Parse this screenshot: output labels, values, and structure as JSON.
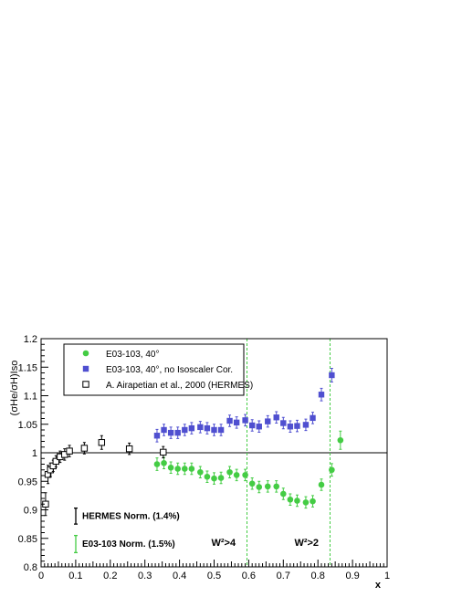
{
  "chart_data": {
    "type": "scatter",
    "xlabel": "x",
    "ylabel": "(σHe/σH)Iso",
    "xlim": [
      0,
      1
    ],
    "ylim": [
      0.8,
      1.2
    ],
    "x_ticks": [
      "0",
      "0.1",
      "0.2",
      "0.3",
      "0.4",
      "0.5",
      "0.6",
      "0.7",
      "0.8",
      "0.9",
      "1"
    ],
    "y_ticks": [
      "0.8",
      "0.85",
      "0.9",
      "0.95",
      "1",
      "1.05",
      "1.1",
      "1.15",
      "1.2"
    ],
    "reference_line": 1.0,
    "legend": {
      "placement": "top-left"
    },
    "colors": {
      "green": "#44cc44",
      "blue": "#4f4fd0",
      "black": "#000000",
      "vline": "#44cc44"
    },
    "series": [
      {
        "name": "E03-103, 40°",
        "marker": "circle",
        "color": "#44cc44",
        "points": [
          {
            "x": 0.335,
            "y": 0.98,
            "err": 0.011
          },
          {
            "x": 0.355,
            "y": 0.982,
            "err": 0.01
          },
          {
            "x": 0.375,
            "y": 0.974,
            "err": 0.01
          },
          {
            "x": 0.395,
            "y": 0.972,
            "err": 0.01
          },
          {
            "x": 0.415,
            "y": 0.972,
            "err": 0.01
          },
          {
            "x": 0.435,
            "y": 0.972,
            "err": 0.01
          },
          {
            "x": 0.46,
            "y": 0.966,
            "err": 0.01
          },
          {
            "x": 0.48,
            "y": 0.958,
            "err": 0.01
          },
          {
            "x": 0.5,
            "y": 0.955,
            "err": 0.01
          },
          {
            "x": 0.52,
            "y": 0.956,
            "err": 0.01
          },
          {
            "x": 0.545,
            "y": 0.966,
            "err": 0.01
          },
          {
            "x": 0.565,
            "y": 0.961,
            "err": 0.01
          },
          {
            "x": 0.59,
            "y": 0.961,
            "err": 0.01
          },
          {
            "x": 0.61,
            "y": 0.946,
            "err": 0.01
          },
          {
            "x": 0.63,
            "y": 0.94,
            "err": 0.01
          },
          {
            "x": 0.655,
            "y": 0.941,
            "err": 0.01
          },
          {
            "x": 0.68,
            "y": 0.941,
            "err": 0.01
          },
          {
            "x": 0.7,
            "y": 0.928,
            "err": 0.01
          },
          {
            "x": 0.72,
            "y": 0.918,
            "err": 0.01
          },
          {
            "x": 0.74,
            "y": 0.916,
            "err": 0.01
          },
          {
            "x": 0.765,
            "y": 0.913,
            "err": 0.01
          },
          {
            "x": 0.785,
            "y": 0.915,
            "err": 0.01
          },
          {
            "x": 0.81,
            "y": 0.944,
            "err": 0.01
          },
          {
            "x": 0.84,
            "y": 0.97,
            "err": 0.011
          },
          {
            "x": 0.865,
            "y": 1.022,
            "err": 0.016
          }
        ]
      },
      {
        "name": "E03-103, 40°, no Isoscaler Cor.",
        "marker": "square",
        "color": "#4f4fd0",
        "points": [
          {
            "x": 0.335,
            "y": 1.03,
            "err": 0.011
          },
          {
            "x": 0.355,
            "y": 1.04,
            "err": 0.01
          },
          {
            "x": 0.375,
            "y": 1.035,
            "err": 0.01
          },
          {
            "x": 0.395,
            "y": 1.035,
            "err": 0.01
          },
          {
            "x": 0.415,
            "y": 1.04,
            "err": 0.01
          },
          {
            "x": 0.435,
            "y": 1.043,
            "err": 0.01
          },
          {
            "x": 0.46,
            "y": 1.045,
            "err": 0.01
          },
          {
            "x": 0.48,
            "y": 1.043,
            "err": 0.01
          },
          {
            "x": 0.5,
            "y": 1.04,
            "err": 0.01
          },
          {
            "x": 0.52,
            "y": 1.04,
            "err": 0.01
          },
          {
            "x": 0.545,
            "y": 1.056,
            "err": 0.01
          },
          {
            "x": 0.565,
            "y": 1.053,
            "err": 0.01
          },
          {
            "x": 0.59,
            "y": 1.057,
            "err": 0.01
          },
          {
            "x": 0.61,
            "y": 1.048,
            "err": 0.01
          },
          {
            "x": 0.63,
            "y": 1.046,
            "err": 0.01
          },
          {
            "x": 0.655,
            "y": 1.055,
            "err": 0.01
          },
          {
            "x": 0.68,
            "y": 1.062,
            "err": 0.01
          },
          {
            "x": 0.7,
            "y": 1.052,
            "err": 0.01
          },
          {
            "x": 0.72,
            "y": 1.046,
            "err": 0.01
          },
          {
            "x": 0.74,
            "y": 1.047,
            "err": 0.01
          },
          {
            "x": 0.765,
            "y": 1.049,
            "err": 0.01
          },
          {
            "x": 0.785,
            "y": 1.061,
            "err": 0.01
          },
          {
            "x": 0.81,
            "y": 1.102,
            "err": 0.011
          },
          {
            "x": 0.84,
            "y": 1.136,
            "err": 0.012
          }
        ]
      },
      {
        "name": "A. Airapetian et al., 2000 (HERMES)",
        "marker": "open-square",
        "color": "#000000",
        "points": [
          {
            "x": 0.013,
            "y": 0.91,
            "err": 0.02
          },
          {
            "x": 0.02,
            "y": 0.962,
            "err": 0.016
          },
          {
            "x": 0.027,
            "y": 0.97,
            "err": 0.012
          },
          {
            "x": 0.035,
            "y": 0.977,
            "err": 0.01
          },
          {
            "x": 0.043,
            "y": 0.985,
            "err": 0.01
          },
          {
            "x": 0.055,
            "y": 0.993,
            "err": 0.01
          },
          {
            "x": 0.068,
            "y": 0.997,
            "err": 0.01
          },
          {
            "x": 0.082,
            "y": 1.003,
            "err": 0.01
          },
          {
            "x": 0.125,
            "y": 1.008,
            "err": 0.01
          },
          {
            "x": 0.175,
            "y": 1.018,
            "err": 0.012
          },
          {
            "x": 0.255,
            "y": 1.007,
            "err": 0.01
          },
          {
            "x": 0.353,
            "y": 1.001,
            "err": 0.01
          }
        ]
      }
    ],
    "vertical_lines": [
      {
        "x": 0.595,
        "label": "W²>4"
      },
      {
        "x": 0.835,
        "label": "W²>2"
      }
    ],
    "norm_bars": [
      {
        "label": "HERMES Norm. (1.4%)",
        "color": "#000000",
        "center": 0.889,
        "half": 0.014
      },
      {
        "label": "E03-103 Norm. (1.5%)",
        "color": "#44cc44",
        "center": 0.84,
        "half": 0.015
      }
    ]
  }
}
